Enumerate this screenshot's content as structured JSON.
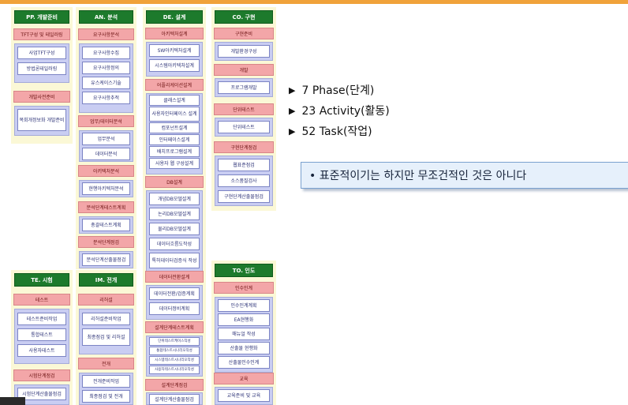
{
  "summary": {
    "phases": "7 Phase(단계)",
    "activities": "23 Activity(활동)",
    "tasks": "52 Task(작업)",
    "bullet_icon": "triangle-right-icon"
  },
  "callout": "• 표준적이기는 하지만 무조건적인 것은 아니다",
  "colors": {
    "phase_title": "#1d7a2c",
    "activity": "#f3a6a8",
    "task_group": "#c9cdf2",
    "phase_bg": "#fbf8d6",
    "accent_bar": "#f0a23a"
  },
  "phases": [
    {
      "title": "PP. 개발준비",
      "sections": [
        {
          "activity": "TFT구성 및 테일러링",
          "tasks": [
            "사업TFT구성",
            "방법론테일러링"
          ]
        },
        {
          "activity": "개발사전준비",
          "tasks": [
            "목회개정보화 개발준비"
          ]
        }
      ]
    },
    {
      "title": "AN. 분석",
      "sections": [
        {
          "activity": "요구사항분석",
          "tasks": [
            "요구사항수집",
            "요구사항정의",
            "유스케이스기술",
            "요구사항추적"
          ]
        },
        {
          "activity": "업무/데이터분석",
          "tasks": [
            "업무분석",
            "데이터분석"
          ]
        },
        {
          "activity": "아키텍처분석",
          "tasks": [
            "현행아키텍처분석"
          ]
        },
        {
          "activity": "분석단계테스트계획",
          "tasks": [
            "총괄테스트계획"
          ]
        },
        {
          "activity": "분석단계점검",
          "tasks": [
            "분석단계산출물점검"
          ]
        }
      ]
    },
    {
      "title": "DE. 설계",
      "sections": [
        {
          "activity": "아키텍처설계",
          "tasks": [
            "SW아키텍처설계",
            "시스템아키텍처설계"
          ]
        },
        {
          "activity": "어플리케이션설계",
          "tasks": [
            "클래스설계",
            "사용자인터페이스 설계",
            "컴포넌트설계",
            "인터페이스설계",
            "배치프로그램설계",
            "사용자 웹 구성설계"
          ]
        },
        {
          "activity": "DB설계",
          "tasks": [
            "개념DB모델설계",
            "논리DB모델설계",
            "물리DB모델설계",
            "데이터흐름도작성",
            "톡허데이터검증식 작성"
          ]
        },
        {
          "activity": "데이터전환설계",
          "tasks": [
            "데이터전환/검증계획",
            "데이터정비계획"
          ]
        },
        {
          "activity": "설계단계테스트계획",
          "tasks": [
            "단위테스트케이스작성",
            "통합테스트시나리오작성",
            "시스템테스트시나리오작성",
            "사용자테스트시나리오작성"
          ]
        },
        {
          "activity": "설계단계점검",
          "tasks": [
            "설계단계산출물점검"
          ]
        }
      ]
    },
    {
      "title": "CO. 구현",
      "sections": [
        {
          "activity": "구현준비",
          "tasks": [
            "개발환경구성"
          ]
        },
        {
          "activity": "개발",
          "tasks": [
            "프로그램개발"
          ]
        },
        {
          "activity": "단위테스트",
          "tasks": [
            "단위테스트"
          ]
        },
        {
          "activity": "구현단계점검",
          "tasks": [
            "웹표준점검",
            "소스품질검사",
            "구현단계산출물점검"
          ]
        }
      ]
    },
    {
      "title": "TE. 시험",
      "sections": [
        {
          "activity": "테스트",
          "tasks": [
            "테스트준비작업",
            "통합테스트",
            "사용자테스트"
          ]
        },
        {
          "activity": "시험단계점검",
          "tasks": [
            "시험단계산출물점검"
          ]
        }
      ]
    },
    {
      "title": "IM. 전개",
      "sections": [
        {
          "activity": "리허설",
          "tasks": [
            "리허설준비작업",
            "최종점검 및 리허설"
          ]
        },
        {
          "activity": "전개",
          "tasks": [
            "전개준비작업",
            "최종점검 및 전개"
          ]
        }
      ]
    },
    {
      "title": "TO. 인도",
      "sections": [
        {
          "activity": "인수인계",
          "tasks": [
            "인수인계계획",
            "EA현행화",
            "매뉴얼 작성",
            "산출물 현행화",
            "산출물인수인계"
          ]
        },
        {
          "activity": "교육",
          "tasks": [
            "교육준비 및 교육"
          ]
        }
      ]
    }
  ]
}
